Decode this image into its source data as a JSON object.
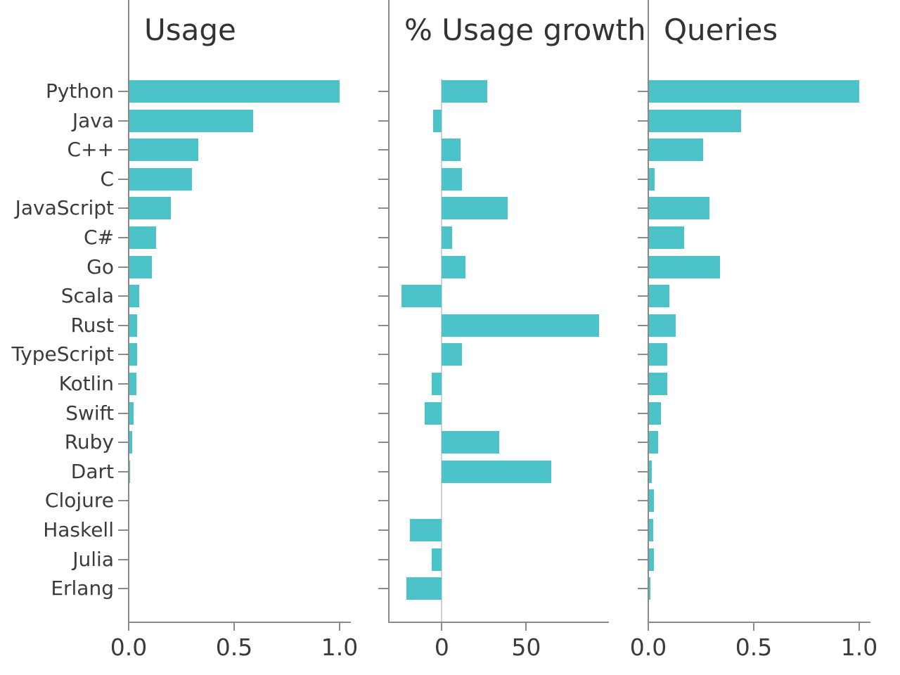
{
  "figure": {
    "bar_color": "#4cc3c8",
    "axis_color": "#8a8a8a",
    "zero_line_color": "#d2d2d2",
    "text_color": "#3b3b3b",
    "background": "#ffffff"
  },
  "chart_data": {
    "type": "bar",
    "orientation": "horizontal",
    "grid": "off",
    "categories": [
      "Python",
      "Java",
      "C++",
      "C",
      "JavaScript",
      "C#",
      "Go",
      "Scala",
      "Rust",
      "TypeScript",
      "Kotlin",
      "Swift",
      "Ruby",
      "Dart",
      "Clojure",
      "Haskell",
      "Julia",
      "Erlang"
    ],
    "panels": [
      {
        "title": "Usage",
        "values": [
          1.0,
          0.59,
          0.33,
          0.3,
          0.2,
          0.13,
          0.11,
          0.05,
          0.04,
          0.04,
          0.035,
          0.023,
          0.016,
          0.007,
          0.002,
          0.001,
          0.002,
          0.001
        ],
        "xlim": [
          0,
          1.05
        ],
        "xticks": [
          {
            "value": 0,
            "label": "0.0"
          },
          {
            "value": 0.5,
            "label": "0.5"
          },
          {
            "value": 1.0,
            "label": "1.0"
          }
        ],
        "zero_line": false
      },
      {
        "title": "% Usage growth",
        "values": [
          27,
          -5,
          11,
          12,
          39,
          6,
          14,
          -24,
          93,
          12,
          -6,
          -10,
          34,
          65,
          0,
          -19,
          -6,
          -21
        ],
        "xlim": [
          -31.4,
          98.6
        ],
        "xticks": [
          {
            "value": 0,
            "label": "0"
          },
          {
            "value": 50,
            "label": "50"
          }
        ],
        "zero_line": true
      },
      {
        "title": "Queries",
        "values": [
          1.0,
          0.44,
          0.26,
          0.03,
          0.29,
          0.17,
          0.34,
          0.1,
          0.13,
          0.09,
          0.09,
          0.06,
          0.045,
          0.015,
          0.028,
          0.022,
          0.028,
          0.01
        ],
        "xlim": [
          0,
          1.05
        ],
        "xticks": [
          {
            "value": 0,
            "label": "0.0"
          },
          {
            "value": 0.5,
            "label": "0.5"
          },
          {
            "value": 1.0,
            "label": "1.0"
          }
        ],
        "zero_line": false
      }
    ]
  }
}
